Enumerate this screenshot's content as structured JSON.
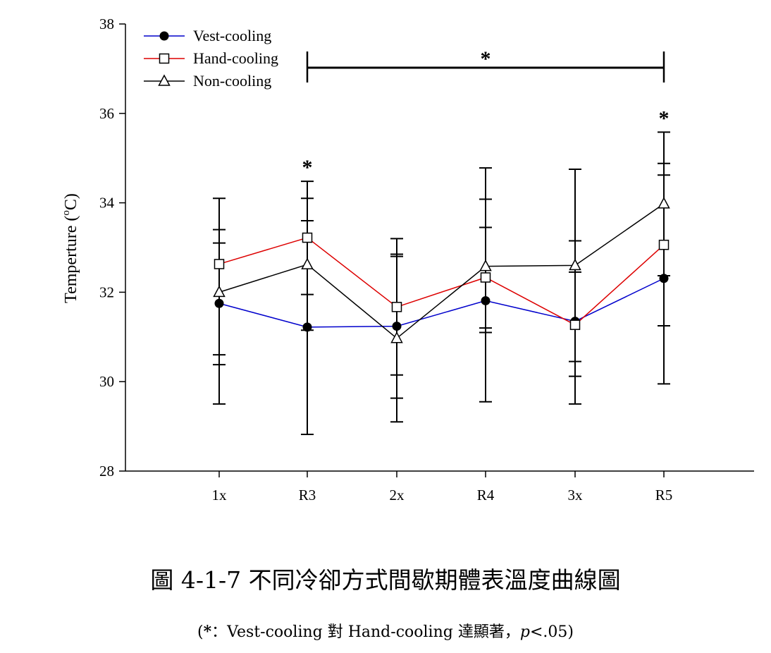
{
  "chart_data": {
    "type": "line",
    "title": "",
    "xlabel": "",
    "ylabel": "Temperture (",
    "ylabel_sup": "o",
    "ylabel_unit": "C)",
    "ylim": [
      28,
      38
    ],
    "yticks": [
      "28",
      "30",
      "32",
      "34",
      "36",
      "38"
    ],
    "grid": false,
    "legend_position": "top-left",
    "categories": [
      "1x",
      "R3",
      "2x",
      "R4",
      "3x",
      "R5"
    ],
    "series": [
      {
        "name": "Vest-cooling",
        "marker": "filled-circle",
        "color": "#0000cc",
        "values": [
          31.75,
          31.22,
          31.24,
          31.81,
          31.35,
          32.31
        ],
        "err_high": [
          34.1,
          33.6,
          32.85,
          34.08,
          34.75,
          34.62
        ],
        "err_low": [
          29.5,
          28.82,
          29.63,
          29.55,
          29.5,
          29.95
        ]
      },
      {
        "name": "Hand-cooling",
        "marker": "open-square",
        "color": "#dd0000",
        "values": [
          32.63,
          33.22,
          31.67,
          32.33,
          31.27,
          33.06
        ],
        "err_high": [
          33.4,
          34.48,
          33.2,
          34.78,
          33.15,
          34.88
        ],
        "err_low": [
          30.6,
          31.95,
          30.15,
          31.1,
          30.12,
          31.25
        ]
      },
      {
        "name": "Non-cooling",
        "marker": "open-triangle",
        "color": "#000000",
        "values": [
          32.0,
          32.62,
          30.97,
          32.58,
          32.6,
          33.98
        ],
        "err_high": [
          33.1,
          34.1,
          32.8,
          33.45,
          32.45,
          35.58
        ],
        "err_low": [
          30.38,
          31.15,
          29.1,
          31.2,
          30.45,
          32.37
        ]
      }
    ],
    "annotations": {
      "bracket": {
        "from": "R3",
        "to": "R5",
        "label": "*"
      },
      "stars": [
        {
          "category": "R3",
          "label": "*"
        },
        {
          "category": "R5",
          "label": "*"
        }
      ]
    }
  },
  "caption": "圖 4-1-7 不同冷卻方式間歇期體表溫度曲線圖",
  "note": {
    "open": "(",
    "star": "*",
    "text": "：Vest-cooling 對 Hand-cooling 達顯著，",
    "p": "p",
    "tail": "<.05)"
  }
}
